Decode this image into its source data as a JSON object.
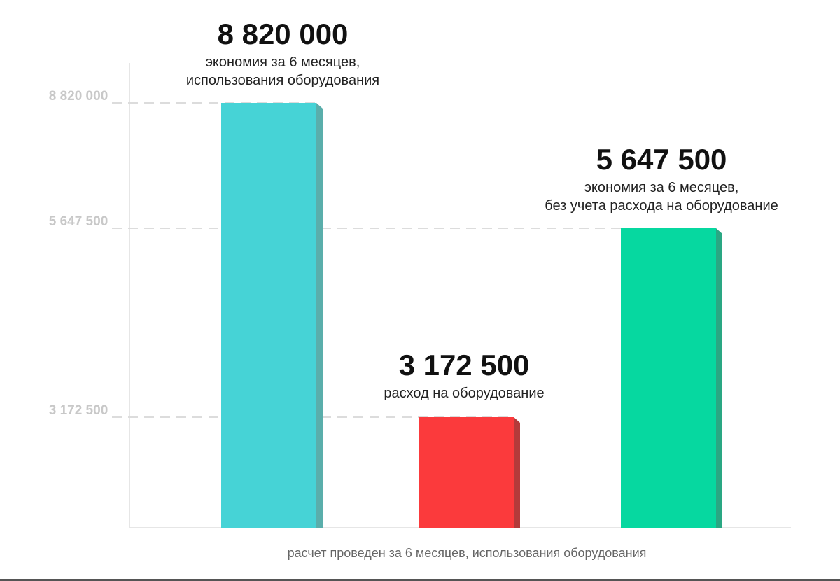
{
  "chart_data": {
    "type": "bar",
    "categories": [
      "экономия за 6 месяцев, использования оборудования",
      "расход на оборудование",
      "экономия за 6 месяцев, без учета расхода на оборудование"
    ],
    "values": [
      8820000,
      3172500,
      5647500
    ],
    "value_labels": [
      "8 820 000",
      "3 172 500",
      "5 647 500"
    ],
    "captions": [
      [
        "экономия за 6 месяцев,",
        "использования оборудования"
      ],
      [
        "расход на оборудование"
      ],
      [
        "экономия за 6 месяцев,",
        "без учета расхода на оборудование"
      ]
    ],
    "colors": [
      "#46d3d6",
      "#fb3a3c",
      "#06d8a0"
    ],
    "side_colors": [
      "#5aaeab",
      "#b33a3a",
      "#2aa783"
    ],
    "y_ticks": [
      3172500,
      5647500,
      8820000
    ],
    "y_tick_labels": [
      "3 172 500",
      "5 647 500",
      "8 820 000"
    ],
    "ylim": [
      0,
      8820000
    ],
    "xlabel": "расчет проведен за 6 месяцев, использования оборудования",
    "ylabel": "",
    "grid": "dashed lines at tick values",
    "legend": "none"
  }
}
